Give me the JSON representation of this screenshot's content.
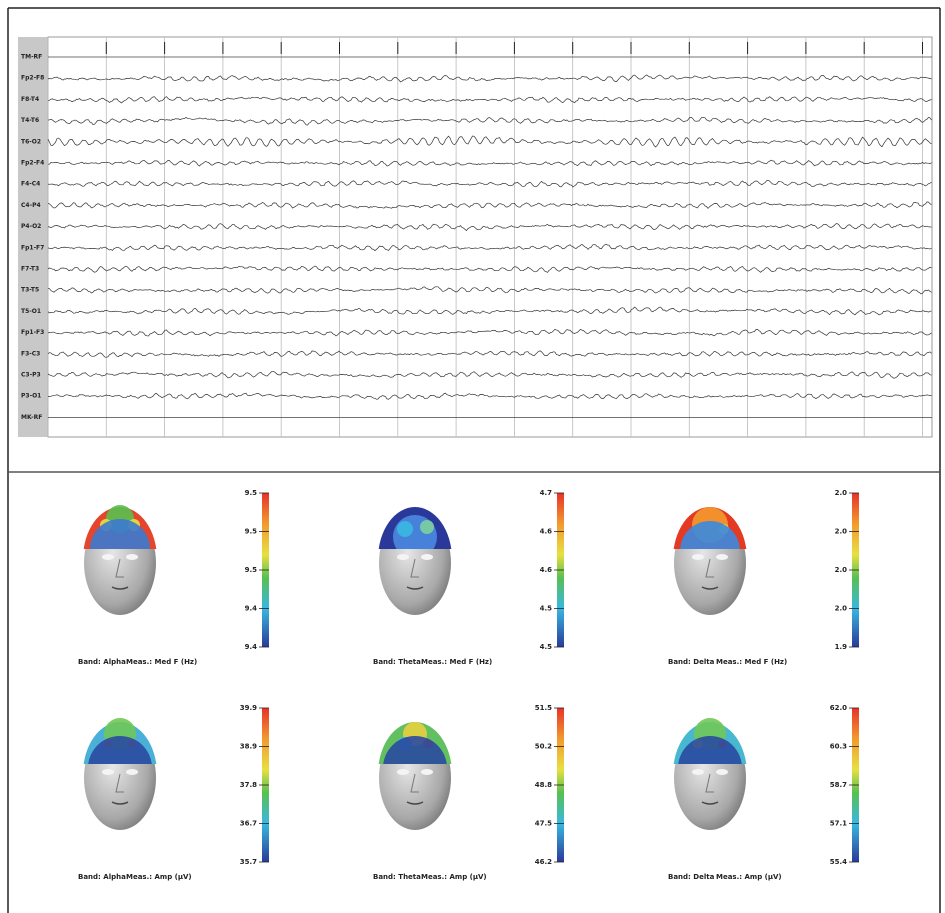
{
  "eeg": {
    "channels": [
      "TM-RF",
      "Fp2-F8",
      "F8-T4",
      "T4-T6",
      "T6-O2",
      "Fp2-F4",
      "F4-C4",
      "C4-P4",
      "P4-O2",
      "Fp1-F7",
      "F7-T3",
      "T3-T5",
      "T5-O1",
      "Fp1-F3",
      "F3-C3",
      "C3-P3",
      "P3-O1",
      "MK-RF"
    ]
  },
  "maps": [
    {
      "band": "Band: Alpha",
      "measure": "Meas.: Med F (Hz)",
      "scale": [
        "9.5",
        "9.5",
        "9.5",
        "9.4",
        "9.4"
      ]
    },
    {
      "band": "Band: Theta",
      "measure": "Meas.: Med F (Hz)",
      "scale": [
        "4.7",
        "4.6",
        "4.6",
        "4.5",
        "4.5"
      ]
    },
    {
      "band": "Band: Delta",
      "measure": "Meas.: Med F (Hz)",
      "scale": [
        "2.0",
        "2.0",
        "2.0",
        "2.0",
        "1.9"
      ]
    },
    {
      "band": "Band: Alpha",
      "measure": "Meas.: Amp (µV)",
      "scale": [
        "39.9",
        "38.9",
        "37.8",
        "36.7",
        "35.7"
      ]
    },
    {
      "band": "Band: Theta",
      "measure": "Meas.: Amp (µV)",
      "scale": [
        "51.5",
        "50.2",
        "48.8",
        "47.5",
        "46.2"
      ]
    },
    {
      "band": "Band: Delta",
      "measure": "Meas.: Amp (µV)",
      "scale": [
        "62.0",
        "60.3",
        "58.7",
        "57.1",
        "55.4"
      ]
    }
  ]
}
